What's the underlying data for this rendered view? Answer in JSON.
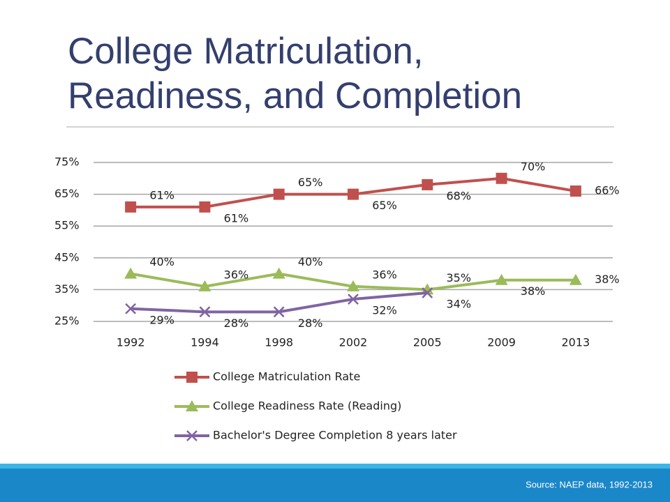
{
  "title": "College Matriculation, Readiness, and Completion",
  "source": "Source: NAEP data, 1992-2013",
  "chart_data": {
    "type": "line",
    "categories": [
      "1992",
      "1994",
      "1998",
      "2002",
      "2005",
      "2009",
      "2013"
    ],
    "series": [
      {
        "name": "College Matriculation Rate",
        "color": "#c0504d",
        "marker": "square",
        "values": [
          61,
          61,
          65,
          65,
          68,
          70,
          66
        ],
        "value_labels": [
          "61%",
          "61%",
          "65%",
          "65%",
          "68%",
          "70%",
          "66%"
        ]
      },
      {
        "name": "College Readiness Rate (Reading)",
        "color": "#9bbb59",
        "marker": "triangle",
        "values": [
          40,
          36,
          40,
          36,
          35,
          38,
          38
        ],
        "value_labels": [
          "40%",
          "36%",
          "40%",
          "36%",
          "35%",
          "38%",
          "38%"
        ]
      },
      {
        "name": "Bachelor's Degree Completion 8 years later",
        "color": "#8064a2",
        "marker": "x",
        "values": [
          29,
          28,
          28,
          32,
          34,
          null,
          null
        ],
        "value_labels": [
          "29%",
          "28%",
          "28%",
          "32%",
          "34%",
          null,
          null
        ]
      }
    ],
    "ylim": [
      25,
      75
    ],
    "yticks": [
      {
        "value": 25,
        "label": "25%"
      },
      {
        "value": 35,
        "label": "35%"
      },
      {
        "value": 45,
        "label": "45%"
      },
      {
        "value": 55,
        "label": "55%"
      },
      {
        "value": 65,
        "label": "65%"
      },
      {
        "value": 75,
        "label": "75%"
      }
    ],
    "grid": true,
    "legend": "bottom"
  }
}
